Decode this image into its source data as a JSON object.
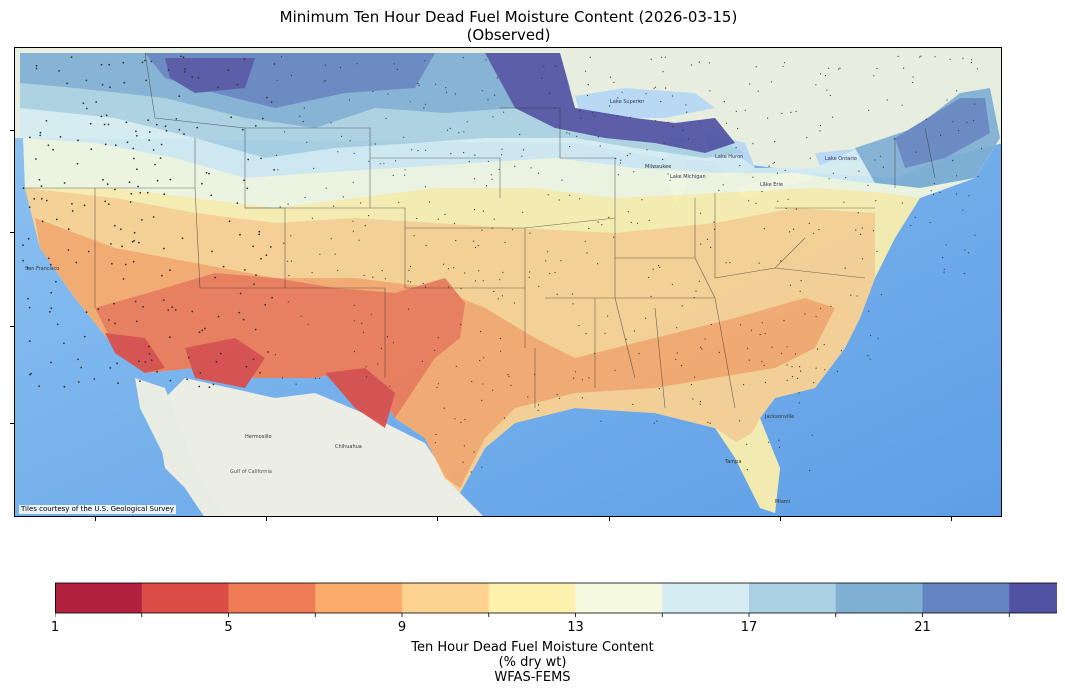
{
  "title": {
    "line1": "Minimum Ten Hour Dead Fuel Moisture Content (2026-03-15)",
    "line2": "(Observed)"
  },
  "map": {
    "tile_credit": "Tiles courtesy of the U.S. Geological Survey",
    "basemap_labels": [
      "San Francisco",
      "Chihuahua",
      "Hermosillo",
      "Gulf of California",
      "Tampa",
      "Jacksonville",
      "Miami",
      "Lake Superior",
      "Lake Michigan",
      "Lake Huron",
      "Lake Erie",
      "Lake Ontario",
      "Milwaukee"
    ],
    "ocean_color": "#79b4ee",
    "land_color": "#eef2e8"
  },
  "colorbar": {
    "tick_labels": [
      "1",
      "5",
      "9",
      "13",
      "17",
      "21"
    ],
    "colors": [
      "#b2223f",
      "#dd4d47",
      "#f07c55",
      "#fbab6a",
      "#fed38f",
      "#fef1ad",
      "#f4f9e0",
      "#d4ecf2",
      "#a9d0e3",
      "#7fb0d4",
      "#6383c1",
      "#5152a3"
    ],
    "extend": "max",
    "label_line1": "Ten Hour Dead Fuel Moisture Content",
    "label_line2": "(% dry wt)",
    "label_line3": "WFAS-FEMS"
  }
}
